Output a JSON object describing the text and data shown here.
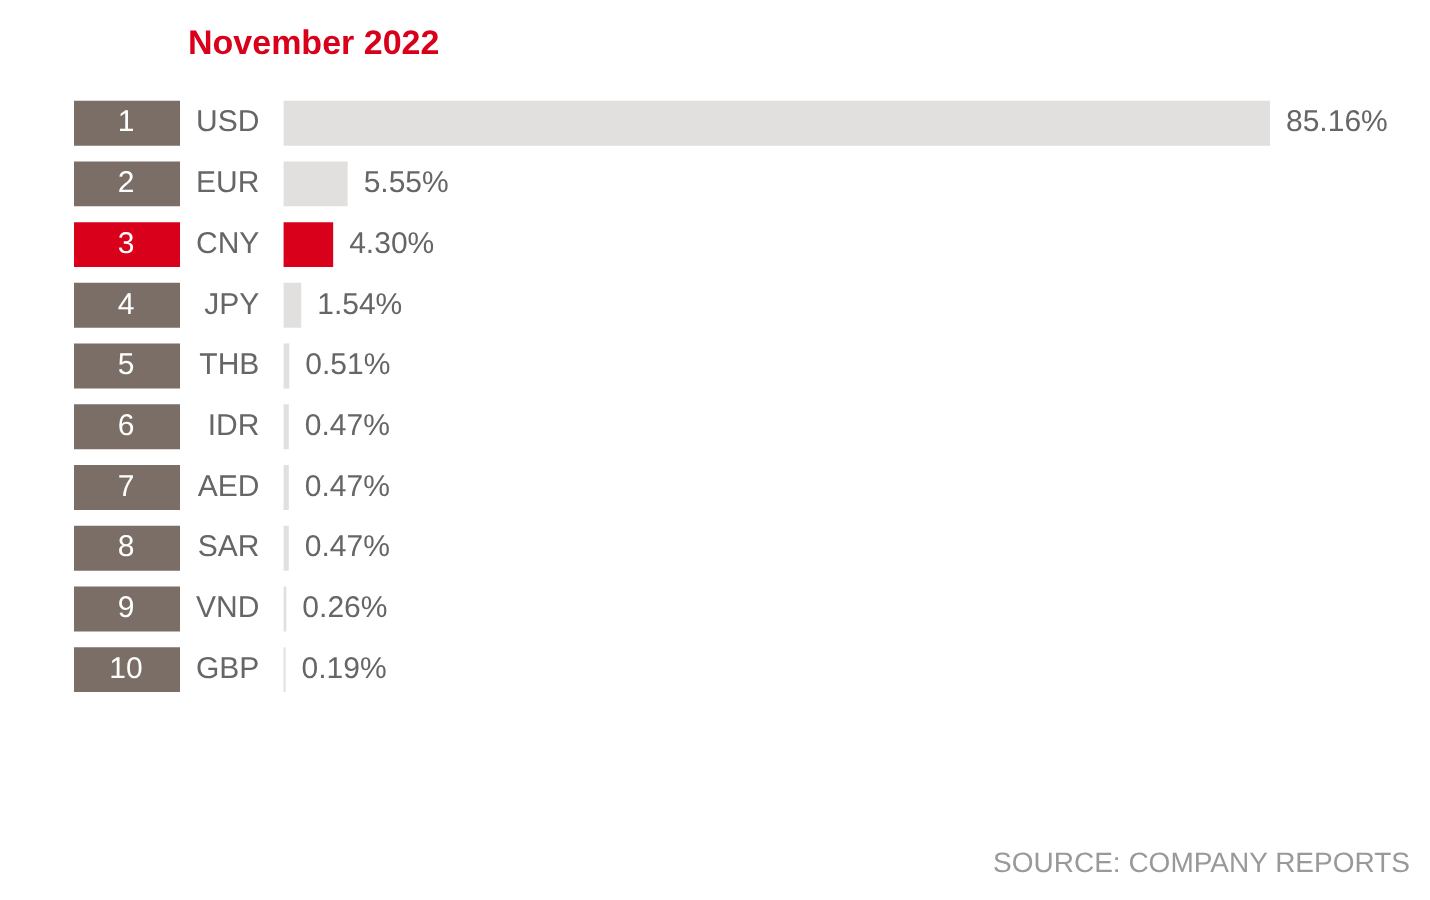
{
  "chart_data": {
    "type": "bar",
    "orientation": "horizontal",
    "title": "November 2022",
    "categories": [
      "USD",
      "EUR",
      "CNY",
      "JPY",
      "THB",
      "IDR",
      "AED",
      "SAR",
      "VND",
      "GBP"
    ],
    "values": [
      85.16,
      5.55,
      4.3,
      1.54,
      0.51,
      0.47,
      0.47,
      0.47,
      0.26,
      0.19
    ],
    "value_labels": [
      "85.16%",
      "5.55%",
      "4.30%",
      "1.54%",
      "0.51%",
      "0.47%",
      "0.47%",
      "0.47%",
      "0.26%",
      "0.19%"
    ],
    "colors": [
      "#e2e0de",
      "#e2e0de",
      "#d9001b",
      "#e2e0de",
      "#e2e0de",
      "#e2e0de",
      "#e2e0de",
      "#e2e0de",
      "#e2e0de",
      "#e2e0de"
    ],
    "legend": false,
    "annotations": [
      "1",
      "2",
      "3",
      "4",
      "5",
      "6",
      "7",
      "8",
      "9",
      "10",
      "SOURCE: COMPANY REPORTS"
    ]
  }
}
